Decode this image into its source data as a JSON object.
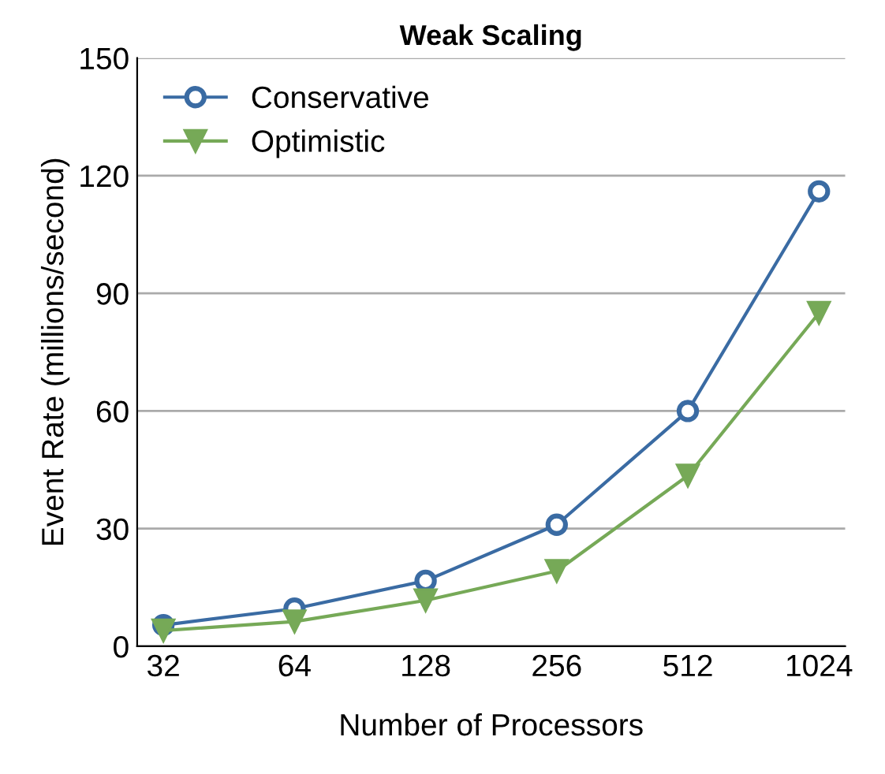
{
  "chart_data": {
    "type": "line",
    "title": "Weak Scaling",
    "xlabel": "Number of Processors",
    "ylabel": "Event Rate (millions/second)",
    "categories": [
      "32",
      "64",
      "128",
      "256",
      "512",
      "1024"
    ],
    "series": [
      {
        "name": "Conservative",
        "color": "#3a6ba3",
        "marker": "circle",
        "values": [
          5.4,
          9.6,
          16.7,
          31,
          60,
          116
        ]
      },
      {
        "name": "Optimistic",
        "color": "#76a957",
        "marker": "triangle",
        "values": [
          4,
          6.3,
          11.7,
          19.2,
          43.5,
          85
        ]
      }
    ],
    "ylim": [
      0,
      150
    ],
    "yticks": [
      0,
      30,
      60,
      90,
      120,
      150
    ],
    "grid": "y",
    "legend": "top left",
    "line_style": "solid"
  }
}
